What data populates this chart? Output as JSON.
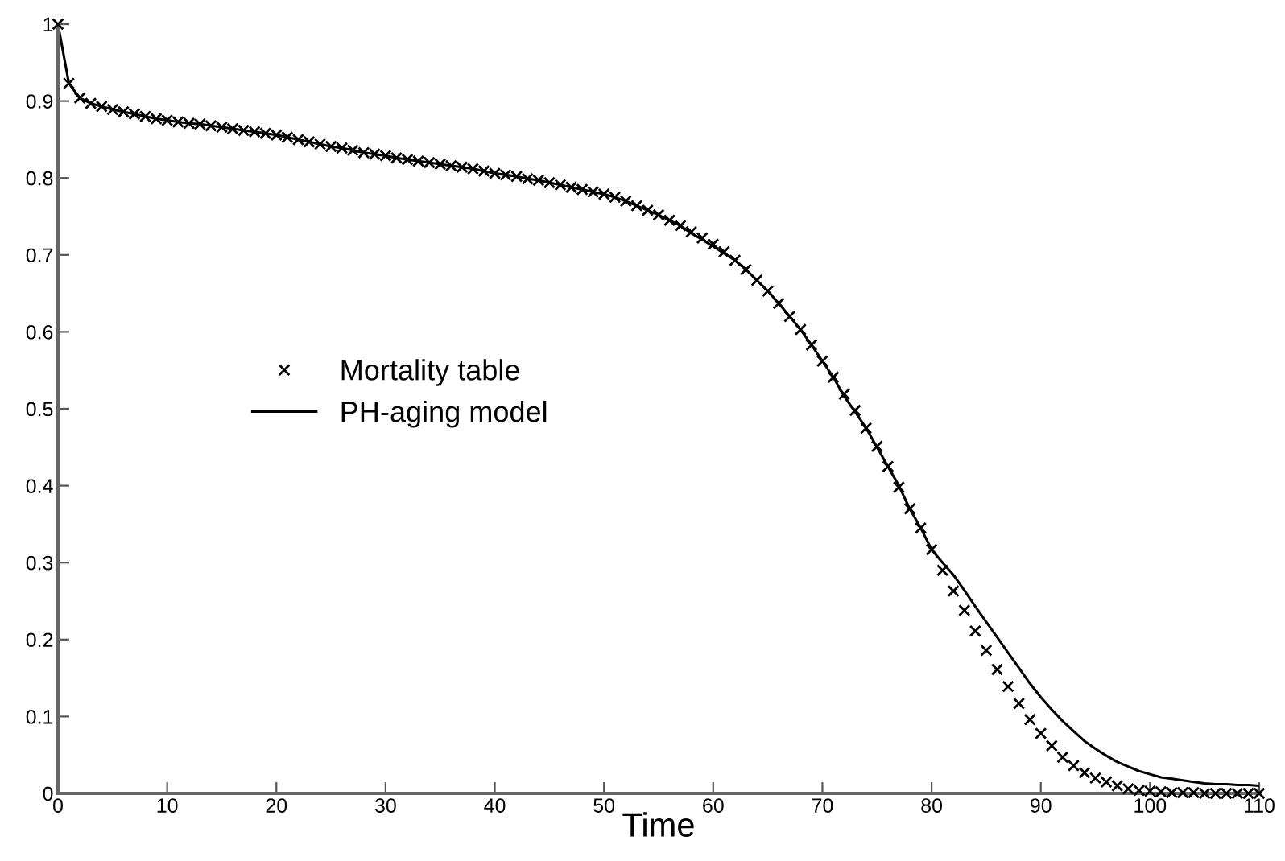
{
  "chart_data": {
    "type": "scatter",
    "xlabel": "Time",
    "xlim": [
      0,
      110
    ],
    "xticks": [
      0,
      10,
      20,
      30,
      40,
      50,
      60,
      70,
      80,
      90,
      100,
      110
    ],
    "ylim": [
      0,
      1
    ],
    "yticks": [
      0,
      0.1,
      0.2,
      0.3,
      0.4,
      0.5,
      0.6,
      0.7,
      0.8,
      0.9,
      1
    ],
    "grid": false,
    "legend": "left",
    "series": [
      {
        "name": "Mortality table",
        "marker": "cross",
        "color": "#000000",
        "x": [
          0,
          1,
          2,
          3,
          4,
          5,
          6,
          7,
          8,
          9,
          10,
          11,
          12,
          13,
          14,
          15,
          16,
          17,
          18,
          19,
          20,
          21,
          22,
          23,
          24,
          25,
          26,
          27,
          28,
          29,
          30,
          31,
          32,
          33,
          34,
          35,
          36,
          37,
          38,
          39,
          40,
          41,
          42,
          43,
          44,
          45,
          46,
          47,
          48,
          49,
          50,
          51,
          52,
          53,
          54,
          55,
          56,
          57,
          58,
          59,
          60,
          61,
          62,
          63,
          64,
          65,
          66,
          67,
          68,
          69,
          70,
          71,
          72,
          73,
          74,
          75,
          76,
          77,
          78,
          79,
          80,
          81,
          82,
          83,
          84,
          85,
          86,
          87,
          88,
          89,
          90,
          91,
          92,
          93,
          94,
          95,
          96,
          97,
          98,
          99,
          100,
          101,
          102,
          103,
          104,
          105,
          106,
          107,
          108,
          109,
          110
        ],
        "values": [
          1.0,
          0.923,
          0.904,
          0.897,
          0.893,
          0.889,
          0.886,
          0.883,
          0.88,
          0.877,
          0.875,
          0.873,
          0.871,
          0.87,
          0.868,
          0.866,
          0.864,
          0.862,
          0.86,
          0.858,
          0.856,
          0.853,
          0.85,
          0.847,
          0.844,
          0.841,
          0.839,
          0.836,
          0.833,
          0.831,
          0.829,
          0.826,
          0.824,
          0.822,
          0.82,
          0.818,
          0.816,
          0.814,
          0.812,
          0.809,
          0.806,
          0.804,
          0.802,
          0.799,
          0.797,
          0.794,
          0.791,
          0.788,
          0.785,
          0.782,
          0.779,
          0.775,
          0.77,
          0.764,
          0.758,
          0.752,
          0.745,
          0.738,
          0.73,
          0.722,
          0.714,
          0.704,
          0.693,
          0.681,
          0.667,
          0.653,
          0.637,
          0.62,
          0.603,
          0.583,
          0.562,
          0.541,
          0.519,
          0.498,
          0.475,
          0.451,
          0.425,
          0.398,
          0.37,
          0.345,
          0.317,
          0.29,
          0.263,
          0.238,
          0.211,
          0.186,
          0.161,
          0.139,
          0.117,
          0.096,
          0.078,
          0.062,
          0.047,
          0.036,
          0.027,
          0.02,
          0.015,
          0.01,
          0.006,
          0.004,
          0.003,
          0.002,
          0.001,
          0.001,
          0.001,
          0.0,
          0.0,
          0.0,
          0.0,
          0.0,
          0.0
        ]
      },
      {
        "name": "PH-aging model",
        "type": "line",
        "marker": "none",
        "line_style": "solid",
        "color": "#000000",
        "x": [
          0,
          1,
          2,
          3,
          4,
          5,
          6,
          7,
          8,
          9,
          10,
          11,
          12,
          13,
          14,
          15,
          16,
          17,
          18,
          19,
          20,
          21,
          22,
          23,
          24,
          25,
          26,
          27,
          28,
          29,
          30,
          31,
          32,
          33,
          34,
          35,
          36,
          37,
          38,
          39,
          40,
          41,
          42,
          43,
          44,
          45,
          46,
          47,
          48,
          49,
          50,
          51,
          52,
          53,
          54,
          55,
          56,
          57,
          58,
          59,
          60,
          61,
          62,
          63,
          64,
          65,
          66,
          67,
          68,
          69,
          70,
          71,
          72,
          73,
          74,
          75,
          76,
          77,
          78,
          79,
          80,
          81,
          82,
          83,
          84,
          85,
          86,
          87,
          88,
          89,
          90,
          91,
          92,
          93,
          94,
          95,
          96,
          97,
          98,
          99,
          100,
          101,
          102,
          103,
          104,
          105,
          106,
          107,
          108,
          109,
          110
        ],
        "values": [
          1.0,
          0.923,
          0.904,
          0.897,
          0.893,
          0.889,
          0.886,
          0.883,
          0.88,
          0.877,
          0.875,
          0.873,
          0.871,
          0.87,
          0.868,
          0.866,
          0.864,
          0.862,
          0.86,
          0.858,
          0.856,
          0.853,
          0.85,
          0.847,
          0.844,
          0.841,
          0.839,
          0.836,
          0.833,
          0.831,
          0.829,
          0.826,
          0.824,
          0.822,
          0.82,
          0.818,
          0.816,
          0.814,
          0.812,
          0.809,
          0.806,
          0.804,
          0.802,
          0.799,
          0.797,
          0.794,
          0.791,
          0.788,
          0.785,
          0.782,
          0.779,
          0.775,
          0.77,
          0.764,
          0.758,
          0.752,
          0.745,
          0.738,
          0.728,
          0.72,
          0.711,
          0.702,
          0.693,
          0.681,
          0.667,
          0.653,
          0.637,
          0.62,
          0.603,
          0.583,
          0.562,
          0.541,
          0.516,
          0.496,
          0.475,
          0.45,
          0.425,
          0.4,
          0.37,
          0.345,
          0.317,
          0.3,
          0.284,
          0.264,
          0.243,
          0.223,
          0.203,
          0.183,
          0.163,
          0.143,
          0.125,
          0.109,
          0.094,
          0.081,
          0.068,
          0.058,
          0.049,
          0.041,
          0.035,
          0.029,
          0.025,
          0.021,
          0.019,
          0.017,
          0.015,
          0.013,
          0.012,
          0.012,
          0.011,
          0.011,
          0.01
        ]
      }
    ]
  }
}
